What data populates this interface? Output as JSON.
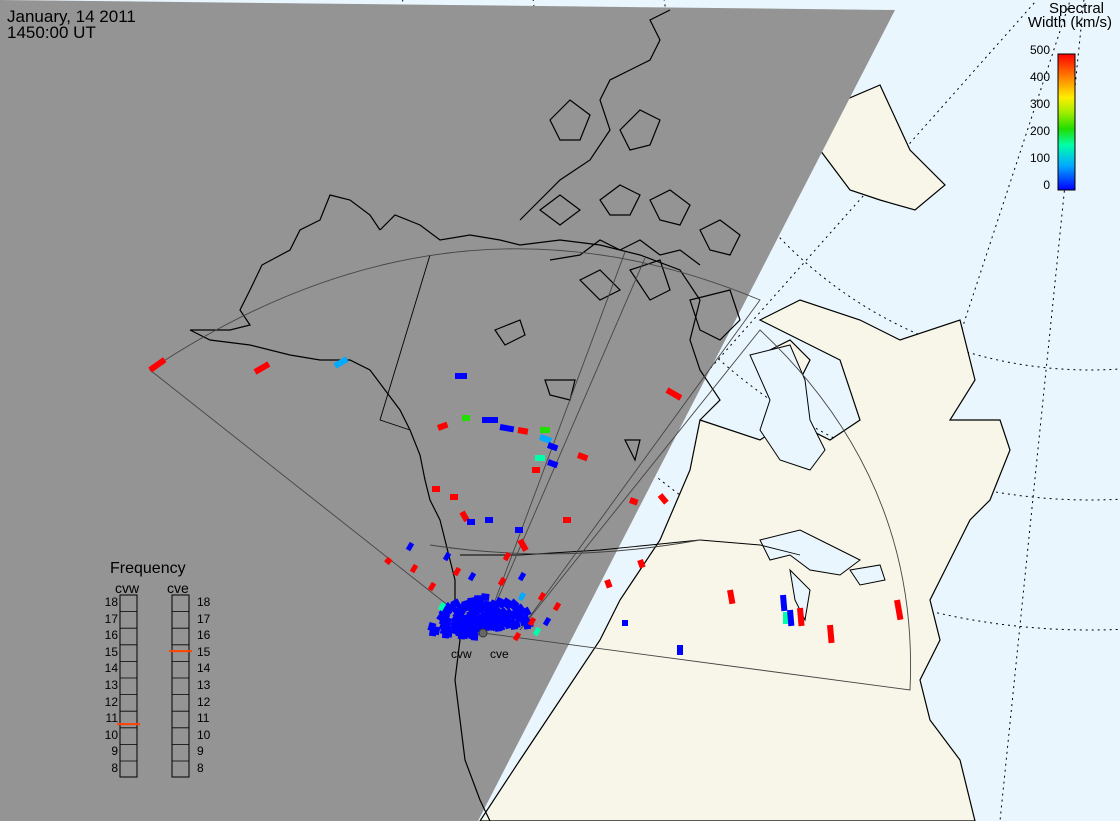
{
  "header": {
    "date": "January, 14 2011",
    "time": "1450:00 UT"
  },
  "colorbar": {
    "title_line1": "Spectral",
    "title_line2": "Width (km/s)",
    "ticks": [
      "500",
      "400",
      "300",
      "200",
      "100",
      "0"
    ],
    "range": [
      0,
      500
    ],
    "colors": [
      "#0000ff",
      "#00aaff",
      "#00ffaa",
      "#22dd00",
      "#aaee00",
      "#ffee00",
      "#ff8800",
      "#ff0000"
    ]
  },
  "frequency_panel": {
    "title": "Frequency",
    "radars": [
      {
        "name": "cvw",
        "frequency_mhz": 10.7
      },
      {
        "name": "cve",
        "frequency_mhz": 15.1
      }
    ],
    "scale": [
      "18",
      "17",
      "16",
      "15",
      "14",
      "13",
      "12",
      "11",
      "10",
      "9",
      "8"
    ],
    "marker_color": "#ff4400"
  },
  "radar_sites": [
    {
      "name": "cvw"
    },
    {
      "name": "cve"
    }
  ],
  "map_colors": {
    "night": "#949494",
    "land_day": "#f7f6e8",
    "ocean_day": "#eaf6fd",
    "coast": "#000000",
    "fov": "#444444"
  }
}
